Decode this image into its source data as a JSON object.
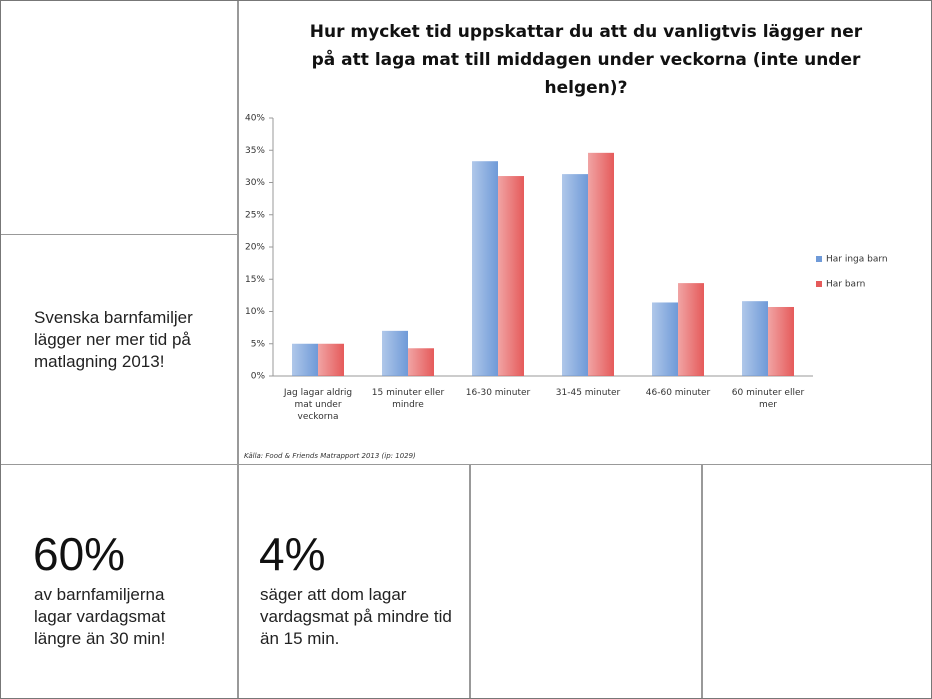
{
  "side_text": "Svenska barnfamiljer lägger ner mer tid på matlagning 2013!",
  "stats": [
    {
      "figure": "60%",
      "text": "av barnfamiljerna lagar vardagsmat längre än 30 min!"
    },
    {
      "figure": "4%",
      "text": "säger att dom lagar vardagsmat på mindre tid än 15 min."
    }
  ],
  "chart_data": {
    "type": "bar",
    "title": "Hur mycket tid uppskattar du att du vanligtvis lägger ner på att laga mat till middagen under veckorna (inte under helgen)?",
    "source": "Källa: Food & Friends Matrapport 2013 (ip: 1029)",
    "categories": [
      "Jag lagar aldrig mat under veckorna",
      "15 minuter eller mindre",
      "16-30 minuter",
      "31-45 minuter",
      "46-60 minuter",
      "60 minuter eller mer"
    ],
    "series": [
      {
        "name": "Har inga barn",
        "color": "#6f9ad8",
        "values": [
          5,
          7,
          33.3,
          31.3,
          11.4,
          11.6
        ]
      },
      {
        "name": "Har barn",
        "color": "#e55a5a",
        "values": [
          5,
          4.3,
          31,
          34.6,
          14.4,
          10.7
        ]
      }
    ],
    "ylim": [
      0,
      40
    ],
    "yticks": [
      {
        "value": 0,
        "label": "0%"
      },
      {
        "value": 5,
        "label": "5%"
      },
      {
        "value": 10,
        "label": "10%"
      },
      {
        "value": 15,
        "label": "15%"
      },
      {
        "value": 20,
        "label": "20%"
      },
      {
        "value": 25,
        "label": "25%"
      },
      {
        "value": 30,
        "label": "30%"
      },
      {
        "value": 35,
        "label": "35%"
      },
      {
        "value": 40,
        "label": "40%"
      }
    ],
    "grid": false,
    "legend": "right"
  }
}
